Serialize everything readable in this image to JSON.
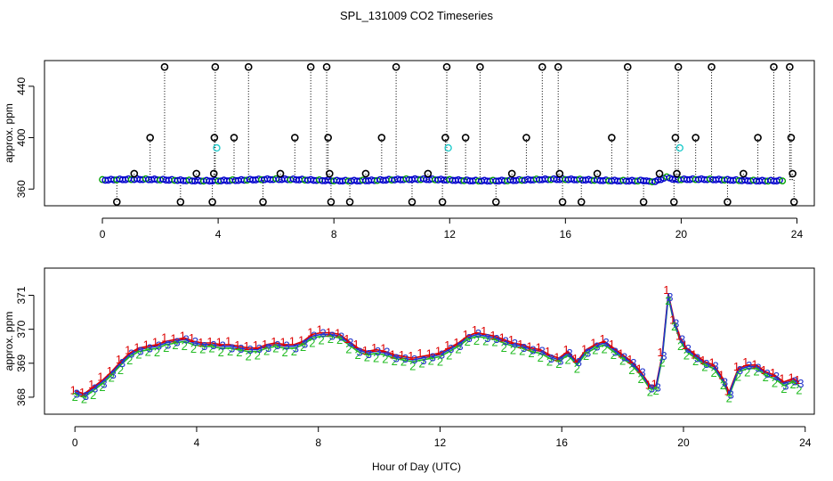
{
  "chart_data": [
    {
      "type": "scatter",
      "panel": "top",
      "title": "SPL_131009  CO2 Timeseries",
      "xlabel": "",
      "ylabel": "approx. ppm",
      "xlim": [
        -2,
        24.6
      ],
      "ylim": [
        347,
        460
      ],
      "x_ticks": [
        0,
        4,
        8,
        12,
        16,
        20,
        24
      ],
      "x_tick_labels": [
        "0",
        "4",
        "8",
        "12",
        "16",
        "20",
        "24"
      ],
      "y_ticks": [
        360,
        400,
        440
      ],
      "y_tick_labels": [
        "360",
        "400",
        "440"
      ],
      "grid": false,
      "baseline_value": 367,
      "colors": {
        "baseline": "#0000cc",
        "baseline_alt": "#00a000",
        "outlier": "#000000",
        "cyan": "#22cccc"
      },
      "cyan_points": [
        {
          "x": 3.95,
          "y": 392
        },
        {
          "x": 11.95,
          "y": 392
        },
        {
          "x": 19.95,
          "y": 392
        }
      ],
      "outliers": [
        {
          "x": 0.5,
          "y": 350
        },
        {
          "x": 1.1,
          "y": 372
        },
        {
          "x": 1.65,
          "y": 400
        },
        {
          "x": 2.15,
          "y": 455
        },
        {
          "x": 2.7,
          "y": 350
        },
        {
          "x": 3.25,
          "y": 372
        },
        {
          "x": 3.8,
          "y": 350
        },
        {
          "x": 3.85,
          "y": 372
        },
        {
          "x": 3.87,
          "y": 400
        },
        {
          "x": 3.9,
          "y": 455
        },
        {
          "x": 4.55,
          "y": 400
        },
        {
          "x": 5.05,
          "y": 455
        },
        {
          "x": 5.55,
          "y": 350
        },
        {
          "x": 6.15,
          "y": 372
        },
        {
          "x": 6.65,
          "y": 400
        },
        {
          "x": 7.2,
          "y": 455
        },
        {
          "x": 7.75,
          "y": 455
        },
        {
          "x": 7.8,
          "y": 400
        },
        {
          "x": 7.85,
          "y": 372
        },
        {
          "x": 7.9,
          "y": 350
        },
        {
          "x": 8.55,
          "y": 350
        },
        {
          "x": 9.1,
          "y": 372
        },
        {
          "x": 9.65,
          "y": 400
        },
        {
          "x": 10.15,
          "y": 455
        },
        {
          "x": 10.7,
          "y": 350
        },
        {
          "x": 11.25,
          "y": 372
        },
        {
          "x": 11.75,
          "y": 350
        },
        {
          "x": 11.85,
          "y": 400
        },
        {
          "x": 11.9,
          "y": 455
        },
        {
          "x": 12.55,
          "y": 400
        },
        {
          "x": 13.05,
          "y": 455
        },
        {
          "x": 13.6,
          "y": 350
        },
        {
          "x": 14.15,
          "y": 372
        },
        {
          "x": 14.65,
          "y": 400
        },
        {
          "x": 15.2,
          "y": 455
        },
        {
          "x": 15.75,
          "y": 455
        },
        {
          "x": 15.8,
          "y": 372
        },
        {
          "x": 15.9,
          "y": 350
        },
        {
          "x": 16.55,
          "y": 350
        },
        {
          "x": 17.1,
          "y": 372
        },
        {
          "x": 17.6,
          "y": 400
        },
        {
          "x": 18.15,
          "y": 455
        },
        {
          "x": 18.7,
          "y": 350
        },
        {
          "x": 19.25,
          "y": 372
        },
        {
          "x": 19.75,
          "y": 350
        },
        {
          "x": 19.8,
          "y": 400
        },
        {
          "x": 19.85,
          "y": 372
        },
        {
          "x": 19.9,
          "y": 455
        },
        {
          "x": 20.5,
          "y": 400
        },
        {
          "x": 21.05,
          "y": 455
        },
        {
          "x": 21.6,
          "y": 350
        },
        {
          "x": 22.15,
          "y": 372
        },
        {
          "x": 22.65,
          "y": 400
        },
        {
          "x": 23.2,
          "y": 455
        },
        {
          "x": 23.75,
          "y": 455
        },
        {
          "x": 23.8,
          "y": 400
        },
        {
          "x": 23.85,
          "y": 372
        },
        {
          "x": 23.9,
          "y": 350
        }
      ]
    },
    {
      "type": "line",
      "panel": "bottom",
      "xlabel": "Hour of Day (UTC)",
      "ylabel": "approx. ppm",
      "xlim": [
        -1,
        24.3
      ],
      "ylim": [
        367.5,
        371.8
      ],
      "x_ticks": [
        0,
        4,
        8,
        12,
        16,
        20,
        24
      ],
      "x_tick_labels": [
        "0",
        "4",
        "8",
        "12",
        "16",
        "20",
        "24"
      ],
      "y_ticks": [
        368,
        369,
        370,
        371
      ],
      "y_tick_labels": [
        "368",
        "369",
        "370",
        "371"
      ],
      "grid": false,
      "series": [
        {
          "name": "1",
          "label": "1",
          "color": "#dd0000",
          "offset": 0.12
        },
        {
          "name": "2",
          "label": "2",
          "color": "#22bb22",
          "offset": -0.14
        },
        {
          "name": "3",
          "label": "3",
          "color": "#2233cc",
          "offset": 0.0
        }
      ],
      "trend_points": [
        {
          "x": 0.0,
          "y": 368.15
        },
        {
          "x": 0.3,
          "y": 368.05
        },
        {
          "x": 0.6,
          "y": 368.25
        },
        {
          "x": 0.9,
          "y": 368.45
        },
        {
          "x": 1.2,
          "y": 368.7
        },
        {
          "x": 1.5,
          "y": 369.0
        },
        {
          "x": 1.8,
          "y": 369.25
        },
        {
          "x": 2.1,
          "y": 369.4
        },
        {
          "x": 2.4,
          "y": 369.45
        },
        {
          "x": 2.7,
          "y": 369.5
        },
        {
          "x": 3.0,
          "y": 369.6
        },
        {
          "x": 3.3,
          "y": 369.65
        },
        {
          "x": 3.6,
          "y": 369.7
        },
        {
          "x": 3.9,
          "y": 369.6
        },
        {
          "x": 4.2,
          "y": 369.55
        },
        {
          "x": 4.5,
          "y": 369.55
        },
        {
          "x": 4.8,
          "y": 369.5
        },
        {
          "x": 5.1,
          "y": 369.5
        },
        {
          "x": 5.4,
          "y": 369.45
        },
        {
          "x": 5.7,
          "y": 369.4
        },
        {
          "x": 6.0,
          "y": 369.4
        },
        {
          "x": 6.3,
          "y": 369.5
        },
        {
          "x": 6.6,
          "y": 369.55
        },
        {
          "x": 6.9,
          "y": 369.5
        },
        {
          "x": 7.2,
          "y": 369.5
        },
        {
          "x": 7.5,
          "y": 369.6
        },
        {
          "x": 7.8,
          "y": 369.8
        },
        {
          "x": 8.1,
          "y": 369.85
        },
        {
          "x": 8.4,
          "y": 369.85
        },
        {
          "x": 8.7,
          "y": 369.8
        },
        {
          "x": 9.0,
          "y": 369.6
        },
        {
          "x": 9.3,
          "y": 369.4
        },
        {
          "x": 9.6,
          "y": 369.3
        },
        {
          "x": 9.9,
          "y": 369.35
        },
        {
          "x": 10.2,
          "y": 369.3
        },
        {
          "x": 10.5,
          "y": 369.2
        },
        {
          "x": 10.8,
          "y": 369.15
        },
        {
          "x": 11.1,
          "y": 369.1
        },
        {
          "x": 11.4,
          "y": 369.15
        },
        {
          "x": 11.7,
          "y": 369.2
        },
        {
          "x": 12.0,
          "y": 369.25
        },
        {
          "x": 12.3,
          "y": 369.4
        },
        {
          "x": 12.6,
          "y": 369.55
        },
        {
          "x": 12.9,
          "y": 369.75
        },
        {
          "x": 13.2,
          "y": 369.85
        },
        {
          "x": 13.5,
          "y": 369.8
        },
        {
          "x": 13.8,
          "y": 369.75
        },
        {
          "x": 14.1,
          "y": 369.65
        },
        {
          "x": 14.4,
          "y": 369.55
        },
        {
          "x": 14.7,
          "y": 369.5
        },
        {
          "x": 15.0,
          "y": 369.4
        },
        {
          "x": 15.3,
          "y": 369.35
        },
        {
          "x": 15.6,
          "y": 369.2
        },
        {
          "x": 15.9,
          "y": 369.1
        },
        {
          "x": 16.2,
          "y": 369.3
        },
        {
          "x": 16.5,
          "y": 369.0
        },
        {
          "x": 16.8,
          "y": 369.35
        },
        {
          "x": 17.1,
          "y": 369.5
        },
        {
          "x": 17.4,
          "y": 369.6
        },
        {
          "x": 17.7,
          "y": 369.4
        },
        {
          "x": 18.0,
          "y": 369.2
        },
        {
          "x": 18.3,
          "y": 369.0
        },
        {
          "x": 18.6,
          "y": 368.7
        },
        {
          "x": 18.9,
          "y": 368.3
        },
        {
          "x": 19.1,
          "y": 368.3
        },
        {
          "x": 19.3,
          "y": 369.2
        },
        {
          "x": 19.5,
          "y": 371.0
        },
        {
          "x": 19.7,
          "y": 370.2
        },
        {
          "x": 19.9,
          "y": 369.7
        },
        {
          "x": 20.1,
          "y": 369.4
        },
        {
          "x": 20.4,
          "y": 369.2
        },
        {
          "x": 20.7,
          "y": 369.0
        },
        {
          "x": 21.0,
          "y": 368.9
        },
        {
          "x": 21.3,
          "y": 368.5
        },
        {
          "x": 21.5,
          "y": 368.1
        },
        {
          "x": 21.8,
          "y": 368.8
        },
        {
          "x": 22.1,
          "y": 368.9
        },
        {
          "x": 22.4,
          "y": 368.9
        },
        {
          "x": 22.7,
          "y": 368.7
        },
        {
          "x": 23.0,
          "y": 368.6
        },
        {
          "x": 23.3,
          "y": 368.4
        },
        {
          "x": 23.6,
          "y": 368.5
        },
        {
          "x": 23.8,
          "y": 368.4
        }
      ]
    }
  ]
}
